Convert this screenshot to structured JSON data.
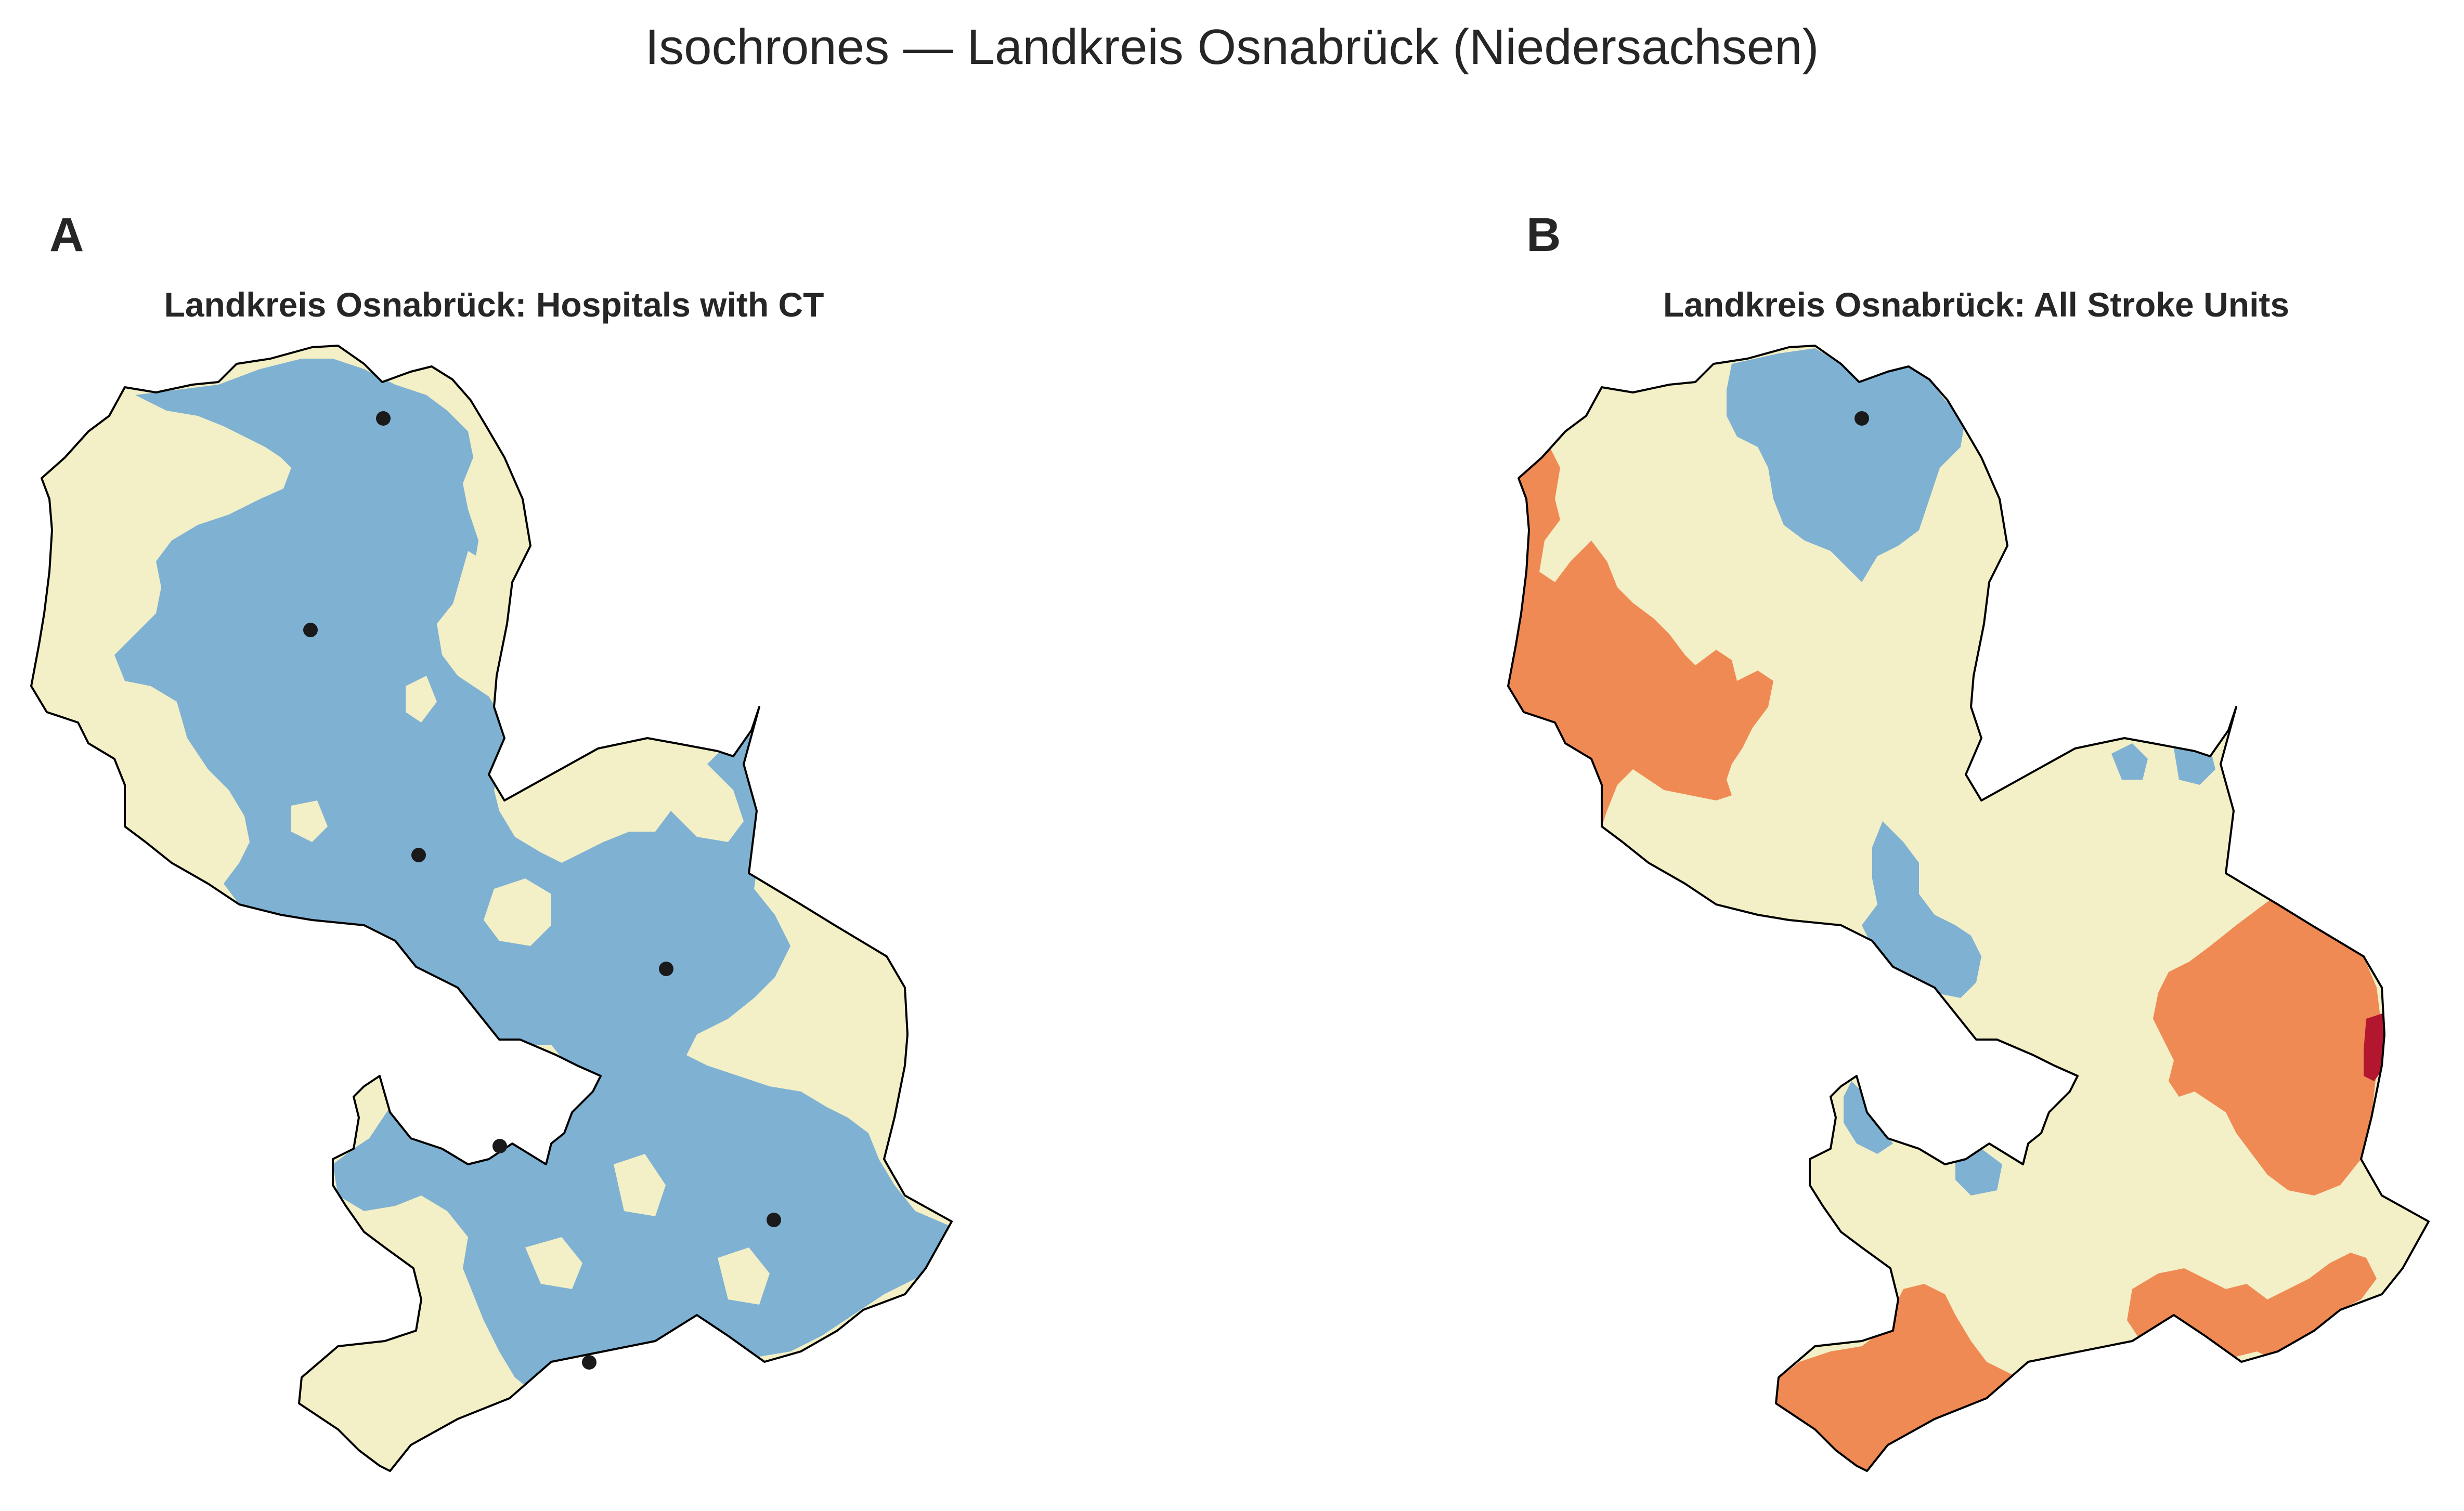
{
  "figure": {
    "suptitle": "Isochrones — Landkreis Osnabrück (Niedersachsen)"
  },
  "colors": {
    "background": "#ffffff",
    "land_outside": "#f3efc6",
    "zone_blue": "#7fb1d3",
    "zone_orange": "#f08a55",
    "zone_red": "#b3172f",
    "border": "#000000",
    "marker": "#1a1a1a"
  },
  "panels": [
    {
      "letter": "A",
      "title": "Landkreis Osnabrück: Hospitals with CT",
      "zones": [
        "blue"
      ],
      "marker_count": 7
    },
    {
      "letter": "B",
      "title": "Landkreis Osnabrück: All Stroke Units",
      "zones": [
        "blue",
        "orange",
        "red"
      ],
      "marker_count": 1
    }
  ]
}
